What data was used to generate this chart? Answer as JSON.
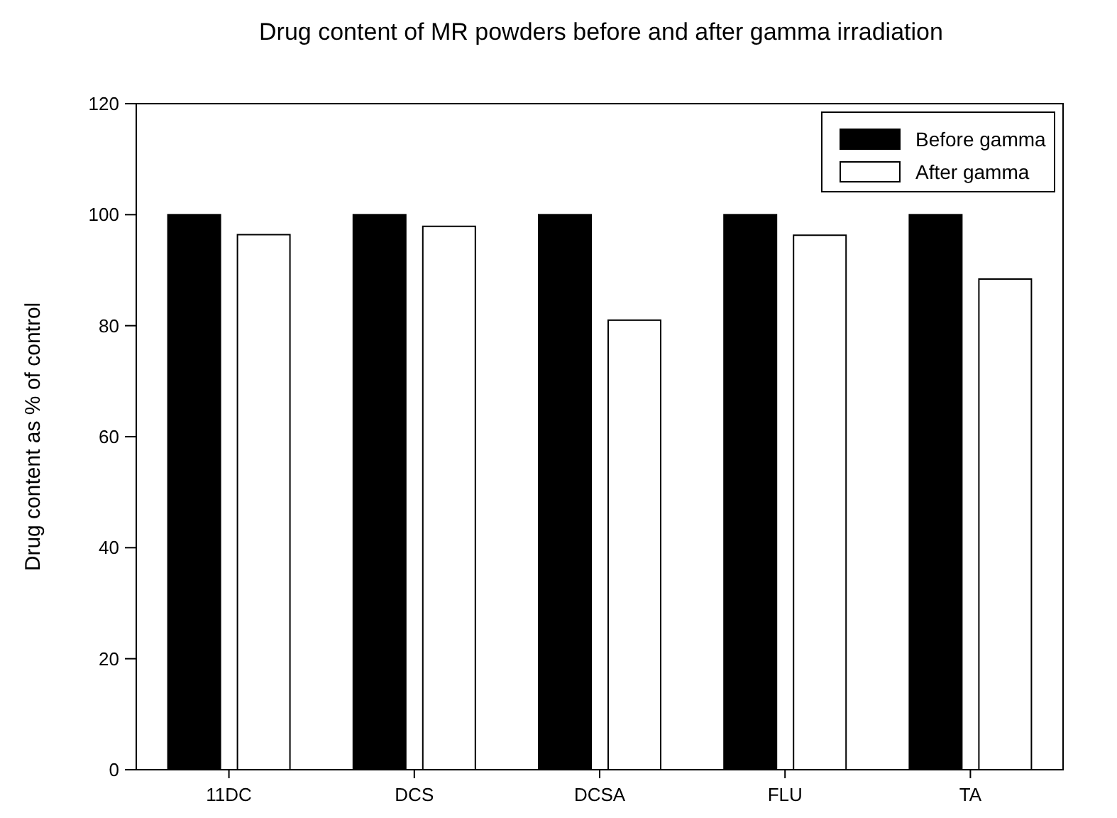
{
  "chart_data": {
    "type": "bar",
    "title": "Drug content of MR powders before and after gamma irradiation",
    "ylabel": "Drug content as % of control",
    "categories": [
      "11DC",
      "DCS",
      "DCSA",
      "FLU",
      "TA"
    ],
    "series": [
      {
        "name": "Before gamma",
        "color": "#000000",
        "values": [
          100,
          100,
          100,
          100,
          100
        ]
      },
      {
        "name": "After gamma",
        "color": "#ffffff",
        "values": [
          96.4,
          97.9,
          81.0,
          96.3,
          88.4
        ]
      }
    ],
    "ylim": [
      0,
      120
    ],
    "yticks": [
      0,
      20,
      40,
      60,
      80,
      100,
      120
    ],
    "grid": false,
    "legend": "top right"
  }
}
